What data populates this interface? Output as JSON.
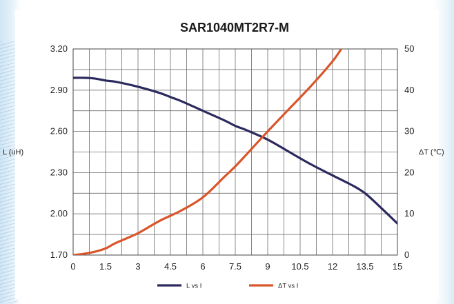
{
  "chart_data": {
    "type": "line",
    "title": "SAR1040MT2R7-M",
    "ylabel": "L (uH)",
    "y2label": "ΔT (℃)",
    "xlim": [
      0,
      15
    ],
    "ylim": [
      1.7,
      3.2
    ],
    "y2lim": [
      0,
      50
    ],
    "x_ticks": [
      "0",
      "1.5",
      "3",
      "4.5",
      "6",
      "7.5",
      "9",
      "10.5",
      "12",
      "13.5",
      "15"
    ],
    "y_ticks": [
      "1.70",
      "2.00",
      "2.30",
      "2.60",
      "2.90",
      "3.20"
    ],
    "y2_ticks": [
      "0",
      "10",
      "20",
      "30",
      "40",
      "50"
    ],
    "grid": true,
    "legend_position": "bottom",
    "colors": {
      "inductance": "#2b2a5e",
      "temperature": "#d9552a"
    },
    "series": [
      {
        "name": "L vs I",
        "axis": "left",
        "x": [
          0,
          0.5,
          1,
          1.5,
          2,
          3,
          4,
          4.5,
          5,
          6,
          7,
          7.5,
          8,
          9,
          10,
          11,
          12,
          13,
          13.5,
          14,
          15
        ],
        "y": [
          2.99,
          2.99,
          2.985,
          2.97,
          2.96,
          2.925,
          2.88,
          2.85,
          2.82,
          2.75,
          2.68,
          2.64,
          2.61,
          2.54,
          2.45,
          2.36,
          2.28,
          2.2,
          2.15,
          2.08,
          1.93
        ]
      },
      {
        "name": "ΔT vs I",
        "axis": "right",
        "x": [
          0,
          0.5,
          1,
          1.5,
          2,
          3,
          4,
          5,
          6,
          7,
          7.5,
          8,
          9,
          10,
          11,
          12,
          12.5,
          12.7
        ],
        "y": [
          0,
          0.3,
          0.8,
          1.6,
          3,
          5.3,
          8.3,
          10.8,
          14,
          19,
          21.5,
          24.3,
          30,
          35.5,
          41,
          47,
          50.8,
          52.5
        ]
      }
    ]
  }
}
